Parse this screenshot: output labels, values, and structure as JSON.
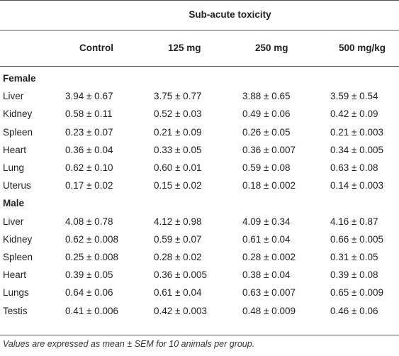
{
  "table": {
    "title": "Sub-acute toxicity",
    "columns": [
      "",
      "Control",
      "125 mg",
      "250 mg",
      "500 mg/kg"
    ],
    "sections": [
      {
        "label": "Female",
        "rows": [
          [
            "Liver",
            "3.94 ± 0.67",
            "3.75 ± 0.77",
            "3.88 ± 0.65",
            "3.59 ± 0.54"
          ],
          [
            "Kidney",
            "0.58 ± 0.11",
            "0.52 ± 0.03",
            "0.49 ± 0.06",
            "0.42 ± 0.09"
          ],
          [
            "Spleen",
            "0.23 ± 0.07",
            "0.21 ± 0.09",
            "0.26 ± 0.05",
            "0.21 ± 0.003"
          ],
          [
            "Heart",
            "0.36 ± 0.04",
            "0.33 ± 0.05",
            "0.36 ± 0.007",
            "0.34 ± 0.005"
          ],
          [
            "Lung",
            "0.62 ± 0.10",
            "0.60 ± 0.01",
            "0.59 ± 0.08",
            "0.63 ± 0.08"
          ],
          [
            "Uterus",
            "0.17 ± 0.02",
            "0.15 ± 0.02",
            "0.18 ± 0.002",
            "0.14 ± 0.003"
          ]
        ]
      },
      {
        "label": "Male",
        "rows": [
          [
            "Liver",
            "4.08 ± 0.78",
            "4.12 ± 0.98",
            "4.09 ± 0.34",
            "4.16 ± 0.87"
          ],
          [
            "Kidney",
            "0.62 ± 0.008",
            "0.59 ± 0.07",
            "0.61 ± 0.04",
            "0.66 ± 0.005"
          ],
          [
            "Spleen",
            "0.25 ± 0.008",
            "0.28 ± 0.02",
            "0.28 ± 0.002",
            "0.31 ± 0.05"
          ],
          [
            "Heart",
            "0.39 ± 0.05",
            "0.36 ± 0.005",
            "0.38 ± 0.04",
            "0.39 ± 0.08"
          ],
          [
            "Lungs",
            "0.64 ± 0.06",
            "0.61 ± 0.04",
            "0.63 ± 0.007",
            "0.65 ± 0.009"
          ],
          [
            "Testis",
            "0.41 ± 0.006",
            "0.42 ± 0.003",
            "0.48 ± 0.009",
            "0.46 ± 0.06"
          ]
        ]
      }
    ],
    "footnote": "Values are expressed as mean ± SEM for 10 animals per group."
  }
}
